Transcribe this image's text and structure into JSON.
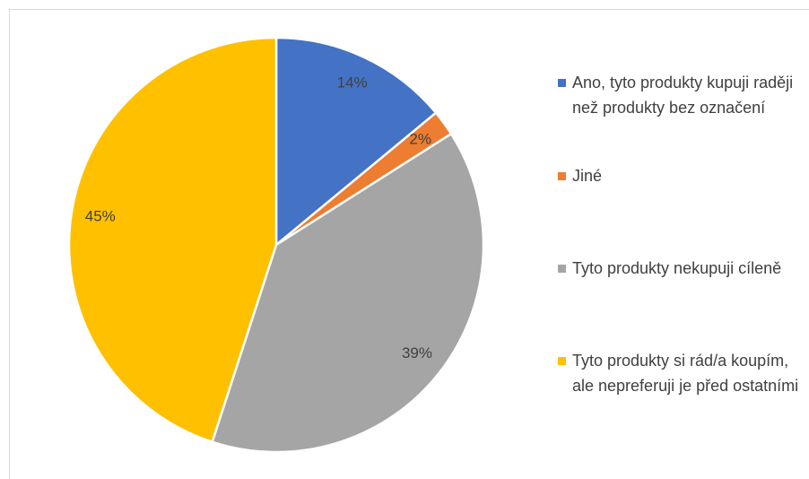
{
  "chart_data": {
    "type": "pie",
    "categories": [
      "Ano, tyto produkty kupuji raději než produkty bez označení",
      "Jiné",
      "Tyto produkty nekupuji cíleně",
      "Tyto produkty si rád/a koupím, ale nepreferuji je před ostatními"
    ],
    "values": [
      14,
      2,
      39,
      45
    ],
    "value_labels": [
      "14%",
      "2%",
      "39%",
      "45%"
    ],
    "colors": [
      "#4472c4",
      "#ed7d31",
      "#a5a5a5",
      "#ffc000"
    ],
    "legend": "right"
  }
}
